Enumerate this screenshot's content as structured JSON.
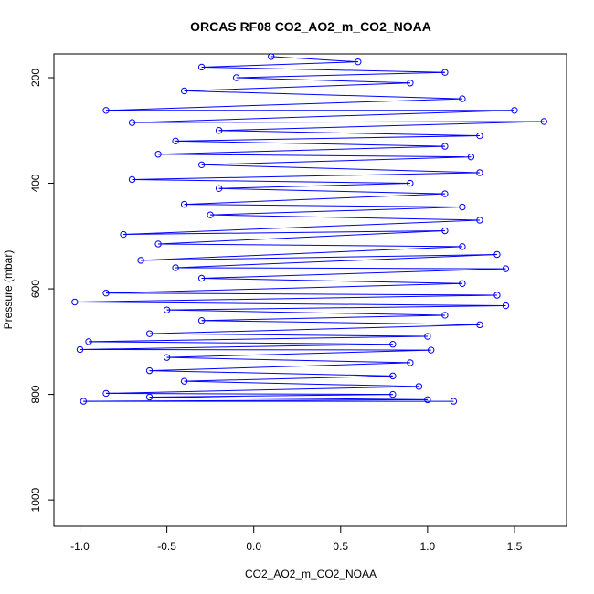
{
  "chart_data": {
    "type": "scatter",
    "title": "ORCAS RF08 CO2_AO2_m_CO2_NOAA",
    "xlabel": "CO2_AO2_m_CO2_NOAA",
    "ylabel": "Pressure (mbar)",
    "xlim": [
      -1.15,
      1.8
    ],
    "ylim": [
      1050,
      155
    ],
    "y_reversed": true,
    "x_ticks": [
      -1.0,
      -0.5,
      0.0,
      0.5,
      1.0,
      1.5
    ],
    "x_tick_labels": [
      "-1.0",
      "-0.5",
      "0.0",
      "0.5",
      "1.0",
      "1.5"
    ],
    "y_ticks": [
      200,
      400,
      600,
      800,
      1000
    ],
    "y_tick_labels": [
      "200",
      "400",
      "600",
      "800",
      "1000"
    ],
    "series_color": "#0000ff",
    "marker": "open-circle",
    "connected": true,
    "grid": false,
    "points": [
      {
        "x": 0.1,
        "y": 160
      },
      {
        "x": 0.6,
        "y": 170
      },
      {
        "x": -0.3,
        "y": 180
      },
      {
        "x": 1.1,
        "y": 190
      },
      {
        "x": -0.1,
        "y": 200
      },
      {
        "x": 0.9,
        "y": 210
      },
      {
        "x": -0.4,
        "y": 225
      },
      {
        "x": 1.2,
        "y": 240
      },
      {
        "x": -0.85,
        "y": 262
      },
      {
        "x": 1.5,
        "y": 262
      },
      {
        "x": -0.7,
        "y": 285
      },
      {
        "x": 1.67,
        "y": 283
      },
      {
        "x": -0.2,
        "y": 300
      },
      {
        "x": 1.3,
        "y": 310
      },
      {
        "x": -0.45,
        "y": 320
      },
      {
        "x": 1.1,
        "y": 330
      },
      {
        "x": -0.55,
        "y": 345
      },
      {
        "x": 1.25,
        "y": 350
      },
      {
        "x": -0.3,
        "y": 365
      },
      {
        "x": 1.3,
        "y": 380
      },
      {
        "x": -0.7,
        "y": 393
      },
      {
        "x": 0.9,
        "y": 400
      },
      {
        "x": -0.2,
        "y": 410
      },
      {
        "x": 1.1,
        "y": 420
      },
      {
        "x": -0.4,
        "y": 440
      },
      {
        "x": 1.2,
        "y": 445
      },
      {
        "x": -0.25,
        "y": 460
      },
      {
        "x": 1.3,
        "y": 470
      },
      {
        "x": -0.75,
        "y": 497
      },
      {
        "x": 1.1,
        "y": 490
      },
      {
        "x": -0.55,
        "y": 515
      },
      {
        "x": 1.2,
        "y": 520
      },
      {
        "x": -0.65,
        "y": 546
      },
      {
        "x": 1.4,
        "y": 535
      },
      {
        "x": -0.45,
        "y": 560
      },
      {
        "x": 1.45,
        "y": 562
      },
      {
        "x": -0.3,
        "y": 580
      },
      {
        "x": 1.2,
        "y": 590
      },
      {
        "x": -0.85,
        "y": 608
      },
      {
        "x": 1.4,
        "y": 612
      },
      {
        "x": -1.03,
        "y": 625
      },
      {
        "x": 1.45,
        "y": 632
      },
      {
        "x": -0.5,
        "y": 640
      },
      {
        "x": 1.1,
        "y": 650
      },
      {
        "x": -0.3,
        "y": 660
      },
      {
        "x": 1.3,
        "y": 668
      },
      {
        "x": -0.6,
        "y": 685
      },
      {
        "x": 1.0,
        "y": 690
      },
      {
        "x": -0.95,
        "y": 700
      },
      {
        "x": 0.8,
        "y": 705
      },
      {
        "x": -1.0,
        "y": 715
      },
      {
        "x": 1.02,
        "y": 716
      },
      {
        "x": -0.5,
        "y": 730
      },
      {
        "x": 0.9,
        "y": 740
      },
      {
        "x": -0.6,
        "y": 755
      },
      {
        "x": 0.8,
        "y": 765
      },
      {
        "x": -0.4,
        "y": 775
      },
      {
        "x": 0.95,
        "y": 785
      },
      {
        "x": -0.85,
        "y": 798
      },
      {
        "x": 0.8,
        "y": 800
      },
      {
        "x": -0.6,
        "y": 805
      },
      {
        "x": 1.0,
        "y": 810
      },
      {
        "x": -0.98,
        "y": 813
      },
      {
        "x": 1.15,
        "y": 813
      }
    ]
  }
}
